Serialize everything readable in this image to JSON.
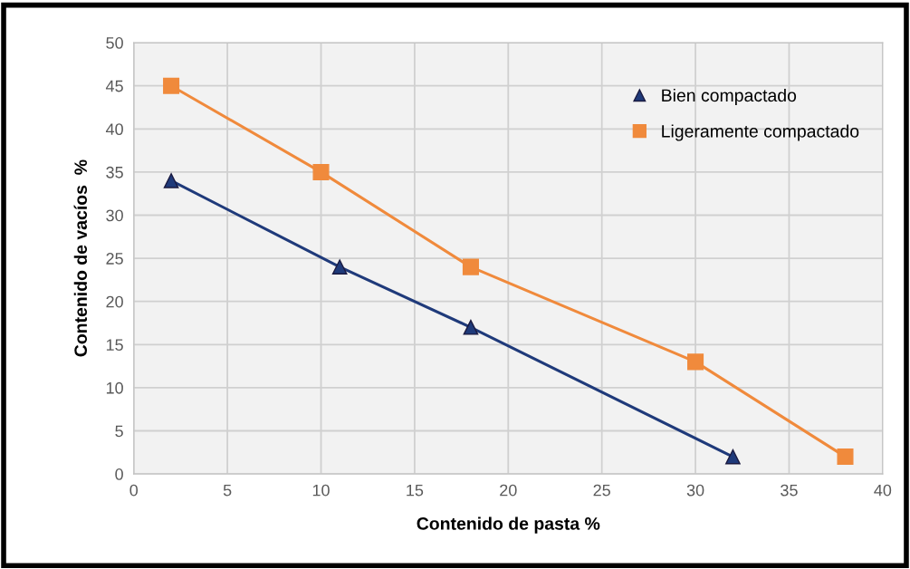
{
  "chart_data": {
    "type": "line",
    "xlabel": "Contenido de pasta %",
    "ylabel": "Contenido de vacíos  %",
    "series": [
      {
        "name": "Bien compactado",
        "color": "#1f3a7a",
        "x": [
          2,
          11,
          18,
          32
        ],
        "values": [
          34,
          24,
          17,
          2
        ],
        "marker": "triangle"
      },
      {
        "name": "Ligeramente compactado",
        "color": "#f08a3c",
        "x": [
          2,
          10,
          18,
          30,
          38
        ],
        "values": [
          45,
          35,
          24,
          13,
          2
        ],
        "marker": "square"
      }
    ],
    "xlim": [
      0,
      40
    ],
    "xticks": [
      0,
      5,
      10,
      15,
      20,
      25,
      30,
      35,
      40
    ],
    "ylim": [
      0,
      50
    ],
    "yticks": [
      0,
      5,
      10,
      15,
      20,
      25,
      30,
      35,
      40,
      45,
      50
    ],
    "grid": true,
    "legend": "top right",
    "line_style": "solid"
  }
}
